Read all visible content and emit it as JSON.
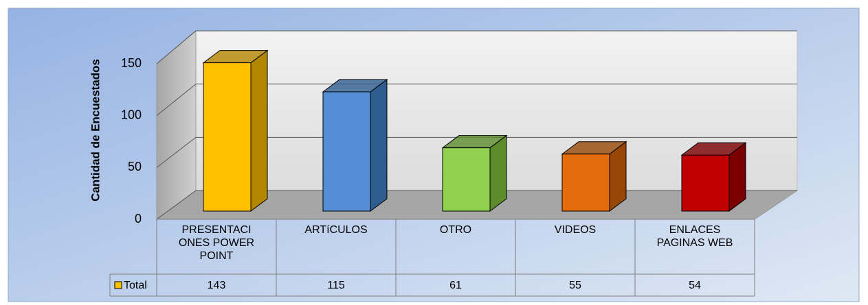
{
  "chart_data": {
    "type": "bar3d",
    "y_label": "Cantidad de Encuestados",
    "categories": [
      "PRESENTACIONES POWER POINT",
      "ARTíCULOS",
      "OTRO",
      "VIDEOS",
      "ENLACES PAGINAS WEB"
    ],
    "series": [
      {
        "name": "Total",
        "color": "#ffc000",
        "values": [
          143,
          115,
          61,
          55,
          54
        ]
      }
    ],
    "colors": [
      "#ffc000",
      "#558ed5",
      "#92d050",
      "#e46c0a",
      "#c00000"
    ],
    "side_colors": [
      "#b38600",
      "#2f5c8f",
      "#5d8c2c",
      "#984806",
      "#7a0000"
    ],
    "ylim": [
      0,
      150
    ],
    "yticks": [
      0,
      50,
      100,
      150
    ],
    "grid": true,
    "data_table": true
  }
}
